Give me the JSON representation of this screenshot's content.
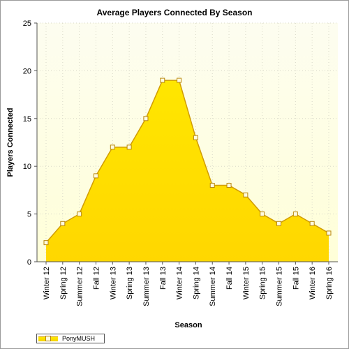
{
  "chart_data": {
    "type": "area",
    "title": "Average Players Connected By Season",
    "xlabel": "Season",
    "ylabel": "Players Connected",
    "ylim": [
      0,
      25
    ],
    "yticks": [
      0,
      5,
      10,
      15,
      20,
      25
    ],
    "grid": true,
    "legend_position": "bottom-left",
    "categories": [
      "Winter 12",
      "Spring 12",
      "Summer 12",
      "Fall 12",
      "Winter 13",
      "Spring 13",
      "Summer 13",
      "Fall 13",
      "Winter 14",
      "Spring 14",
      "Summer 14",
      "Fall 14",
      "Winter 15",
      "Spring 15",
      "Summer 15",
      "Fall 15",
      "Winter 16",
      "Spring 16"
    ],
    "series": [
      {
        "name": "PonyMUSH",
        "values": [
          2,
          4,
          5,
          9,
          12,
          12,
          15,
          19,
          19,
          13,
          8,
          8,
          7,
          5,
          4,
          5,
          4,
          3
        ],
        "color": "#ffe000"
      }
    ]
  },
  "colors": {
    "area_top": "#ffe900",
    "area_bottom": "#ffd800",
    "line": "#d19c00",
    "marker_fill": "#fffbe0",
    "marker_stroke": "#b8860b",
    "plot_bg_top": "#fefef2",
    "plot_bg_bottom": "#ffffe0"
  }
}
